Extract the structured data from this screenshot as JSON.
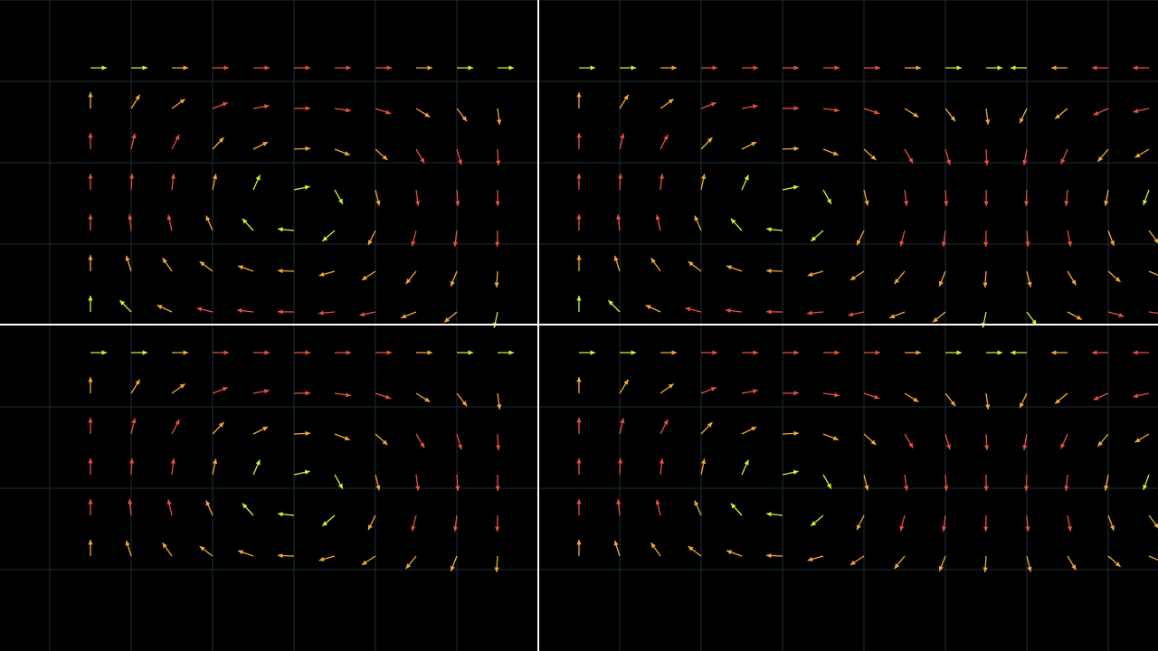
{
  "figure": {
    "kind": "vector-field",
    "background_color": "#000000",
    "grid_color": "#1c2f3a",
    "axis_color": "#ffffff",
    "vector_colors": {
      "weak": "#d7f034",
      "medium": "#f2a93a",
      "strong": "#e8503f"
    },
    "quadrants": 4
  }
}
